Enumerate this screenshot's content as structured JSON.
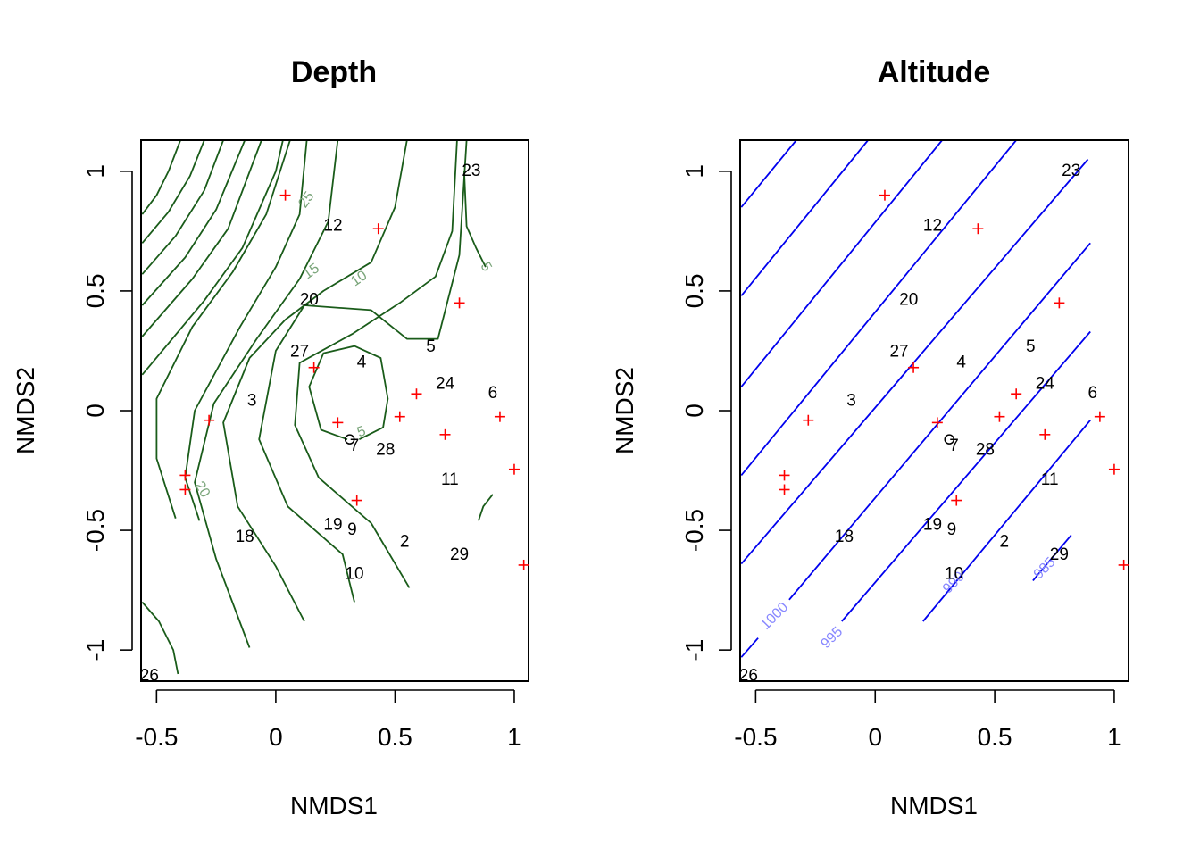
{
  "chart_data": [
    {
      "type": "scatter",
      "title": "Depth",
      "xlabel": "NMDS1",
      "ylabel": "NMDS2",
      "xlim": [
        -0.565,
        1.06
      ],
      "ylim": [
        -1.13,
        1.13
      ],
      "xticks": [
        -0.5,
        0.0,
        0.5,
        1.0
      ],
      "yticks": [
        -1.0,
        -0.5,
        0.0,
        0.5,
        1.0
      ],
      "contour_color": "#1a5c1a",
      "contour_label_color": "#7aa57a",
      "contour_labels": [
        {
          "text": "25",
          "x": 0.13,
          "y": 0.88,
          "angle": -55
        },
        {
          "text": "15",
          "x": 0.15,
          "y": 0.58,
          "angle": -35
        },
        {
          "text": "10",
          "x": 0.35,
          "y": 0.55,
          "angle": -35
        },
        {
          "text": "5",
          "x": 0.88,
          "y": 0.6,
          "angle": 60
        },
        {
          "text": "5",
          "x": 0.36,
          "y": -0.09,
          "angle": -20
        },
        {
          "text": "20",
          "x": -0.31,
          "y": -0.33,
          "angle": 60
        }
      ],
      "contours": [
        [
          [
            -0.56,
            0.82
          ],
          [
            -0.5,
            0.9
          ],
          [
            -0.45,
            1.0
          ],
          [
            -0.4,
            1.13
          ]
        ],
        [
          [
            -0.56,
            0.7
          ],
          [
            -0.45,
            0.83
          ],
          [
            -0.36,
            0.98
          ],
          [
            -0.3,
            1.13
          ]
        ],
        [
          [
            -0.56,
            0.57
          ],
          [
            -0.42,
            0.73
          ],
          [
            -0.3,
            0.92
          ],
          [
            -0.22,
            1.13
          ]
        ],
        [
          [
            -0.56,
            0.44
          ],
          [
            -0.38,
            0.64
          ],
          [
            -0.25,
            0.84
          ],
          [
            -0.13,
            1.13
          ]
        ],
        [
          [
            -0.56,
            0.31
          ],
          [
            -0.35,
            0.55
          ],
          [
            -0.2,
            0.76
          ],
          [
            -0.06,
            1.13
          ]
        ],
        [
          [
            -0.56,
            0.15
          ],
          [
            -0.3,
            0.46
          ],
          [
            -0.14,
            0.68
          ],
          [
            0.0,
            1.0
          ],
          [
            0.03,
            1.13
          ]
        ],
        [
          [
            -0.42,
            -0.45
          ],
          [
            -0.5,
            -0.2
          ],
          [
            -0.5,
            0.05
          ],
          [
            -0.35,
            0.35
          ],
          [
            -0.18,
            0.58
          ],
          [
            -0.04,
            0.82
          ],
          [
            0.06,
            1.13
          ]
        ],
        [
          [
            -0.32,
            -0.46
          ],
          [
            -0.38,
            -0.28
          ],
          [
            -0.34,
            0.0
          ],
          [
            -0.15,
            0.35
          ],
          [
            0.0,
            0.6
          ],
          [
            0.1,
            0.82
          ],
          [
            0.13,
            1.13
          ]
        ],
        [
          [
            -0.11,
            -0.99
          ],
          [
            -0.25,
            -0.62
          ],
          [
            -0.34,
            -0.3
          ],
          [
            -0.26,
            0.03
          ],
          [
            -0.08,
            0.3
          ],
          [
            0.1,
            0.55
          ],
          [
            0.22,
            0.79
          ],
          [
            0.26,
            1.13
          ]
        ],
        [
          [
            0.12,
            -0.88
          ],
          [
            0.0,
            -0.65
          ],
          [
            -0.16,
            -0.4
          ],
          [
            -0.22,
            -0.05
          ],
          [
            -0.11,
            0.22
          ],
          [
            0.04,
            0.38
          ],
          [
            0.2,
            0.5
          ],
          [
            0.4,
            0.62
          ],
          [
            0.5,
            0.85
          ],
          [
            0.55,
            1.13
          ]
        ],
        [
          [
            0.33,
            -0.8
          ],
          [
            0.28,
            -0.6
          ],
          [
            0.05,
            -0.4
          ],
          [
            -0.07,
            -0.12
          ],
          [
            0.0,
            0.25
          ],
          [
            0.12,
            0.44
          ],
          [
            0.4,
            0.42
          ],
          [
            0.55,
            0.3
          ],
          [
            0.68,
            0.3
          ],
          [
            0.77,
            0.65
          ],
          [
            0.8,
            1.13
          ]
        ],
        [
          [
            0.56,
            -0.74
          ],
          [
            0.4,
            -0.47
          ],
          [
            0.18,
            -0.28
          ],
          [
            0.08,
            -0.06
          ],
          [
            0.1,
            0.2
          ],
          [
            0.32,
            0.32
          ],
          [
            0.52,
            0.45
          ],
          [
            0.67,
            0.56
          ],
          [
            0.74,
            0.75
          ],
          [
            0.76,
            1.13
          ]
        ],
        [
          [
            0.3,
            -0.12
          ],
          [
            0.19,
            -0.08
          ],
          [
            0.14,
            0.1
          ],
          [
            0.2,
            0.24
          ],
          [
            0.33,
            0.27
          ],
          [
            0.44,
            0.22
          ],
          [
            0.47,
            0.05
          ],
          [
            0.45,
            -0.07
          ],
          [
            0.35,
            -0.12
          ]
        ],
        [
          [
            0.79,
            1.0
          ],
          [
            0.8,
            0.77
          ],
          [
            0.84,
            0.68
          ],
          [
            0.88,
            0.6
          ]
        ],
        [
          [
            0.85,
            -0.46
          ],
          [
            0.87,
            -0.4
          ],
          [
            0.91,
            -0.35
          ]
        ],
        [
          [
            -0.56,
            -0.8
          ],
          [
            -0.49,
            -0.88
          ],
          [
            -0.43,
            -1.0
          ],
          [
            -0.41,
            -1.1
          ]
        ]
      ],
      "species": [
        [
          0.04,
          0.9
        ],
        [
          0.43,
          0.76
        ],
        [
          0.77,
          0.45
        ],
        [
          0.16,
          0.18
        ],
        [
          0.59,
          0.07
        ],
        [
          -0.28,
          -0.04
        ],
        [
          0.26,
          -0.05
        ],
        [
          0.52,
          -0.025
        ],
        [
          0.94,
          -0.025
        ],
        [
          0.71,
          -0.1
        ],
        [
          1.0,
          -0.245
        ],
        [
          -0.38,
          -0.27
        ],
        [
          -0.38,
          -0.33
        ],
        [
          0.34,
          -0.375
        ],
        [
          1.04,
          -0.645
        ]
      ],
      "sites": [
        {
          "label": "23",
          "x": 0.82,
          "y": 1.0
        },
        {
          "label": "12",
          "x": 0.24,
          "y": 0.77
        },
        {
          "label": "20",
          "x": 0.14,
          "y": 0.46
        },
        {
          "label": "5",
          "x": 0.65,
          "y": 0.265
        },
        {
          "label": "27",
          "x": 0.1,
          "y": 0.245
        },
        {
          "label": "4",
          "x": 0.36,
          "y": 0.2
        },
        {
          "label": "24",
          "x": 0.71,
          "y": 0.11
        },
        {
          "label": "6",
          "x": 0.91,
          "y": 0.07
        },
        {
          "label": "3",
          "x": -0.1,
          "y": 0.04
        },
        {
          "label": "7",
          "x": 0.33,
          "y": -0.15
        },
        {
          "label": "28",
          "x": 0.46,
          "y": -0.165
        },
        {
          "label": "11",
          "x": 0.73,
          "y": -0.29
        },
        {
          "label": "19",
          "x": 0.24,
          "y": -0.48
        },
        {
          "label": "9",
          "x": 0.32,
          "y": -0.5
        },
        {
          "label": "18",
          "x": -0.13,
          "y": -0.53
        },
        {
          "label": "2",
          "x": 0.54,
          "y": -0.55
        },
        {
          "label": "29",
          "x": 0.77,
          "y": -0.605
        },
        {
          "label": "10",
          "x": 0.33,
          "y": -0.685
        },
        {
          "label": "26",
          "x": -0.53,
          "y": -1.11
        }
      ],
      "circle_marker": {
        "x": 0.31,
        "y": -0.12
      }
    },
    {
      "type": "scatter",
      "title": "Altitude",
      "xlabel": "NMDS1",
      "ylabel": "NMDS2",
      "xlim": [
        -0.565,
        1.06
      ],
      "ylim": [
        -1.13,
        1.13
      ],
      "xticks": [
        -0.5,
        0.0,
        0.5,
        1.0
      ],
      "yticks": [
        -1.0,
        -0.5,
        0.0,
        0.5,
        1.0
      ],
      "contour_color": "#0000ee",
      "contour_label_color": "#8888ff",
      "contour_labels": [
        {
          "text": "1000",
          "x": -0.42,
          "y": -0.86,
          "angle": -45
        },
        {
          "text": "995",
          "x": -0.18,
          "y": -0.95,
          "angle": -45
        },
        {
          "text": "990",
          "x": 0.33,
          "y": -0.72,
          "angle": -45
        },
        {
          "text": "985",
          "x": 0.71,
          "y": -0.66,
          "angle": -45
        }
      ],
      "contours": [
        [
          [
            -0.56,
            0.85
          ],
          [
            -0.33,
            1.13
          ]
        ],
        [
          [
            -0.56,
            0.48
          ],
          [
            -0.03,
            1.13
          ]
        ],
        [
          [
            -0.56,
            0.1
          ],
          [
            0.28,
            1.13
          ]
        ],
        [
          [
            -0.56,
            -0.27
          ],
          [
            0.59,
            1.13
          ]
        ],
        [
          [
            -0.56,
            -0.64
          ],
          [
            0.89,
            1.05
          ]
        ],
        [
          [
            -0.56,
            -1.03
          ],
          [
            -0.49,
            -0.95
          ]
        ],
        [
          [
            -0.36,
            -0.79
          ],
          [
            0.9,
            0.7
          ]
        ],
        [
          [
            -0.14,
            -0.88
          ],
          [
            0.9,
            0.33
          ]
        ],
        [
          [
            0.2,
            -0.88
          ],
          [
            0.9,
            -0.04
          ]
        ],
        [
          [
            0.66,
            -0.71
          ],
          [
            0.82,
            -0.52
          ]
        ]
      ],
      "species": [
        [
          0.04,
          0.9
        ],
        [
          0.43,
          0.76
        ],
        [
          0.77,
          0.45
        ],
        [
          0.16,
          0.18
        ],
        [
          0.59,
          0.07
        ],
        [
          -0.28,
          -0.04
        ],
        [
          0.26,
          -0.05
        ],
        [
          0.52,
          -0.025
        ],
        [
          0.94,
          -0.025
        ],
        [
          0.71,
          -0.1
        ],
        [
          1.0,
          -0.245
        ],
        [
          -0.38,
          -0.27
        ],
        [
          -0.38,
          -0.33
        ],
        [
          0.34,
          -0.375
        ],
        [
          1.04,
          -0.645
        ]
      ],
      "sites": [
        {
          "label": "23",
          "x": 0.82,
          "y": 1.0
        },
        {
          "label": "12",
          "x": 0.24,
          "y": 0.77
        },
        {
          "label": "20",
          "x": 0.14,
          "y": 0.46
        },
        {
          "label": "5",
          "x": 0.65,
          "y": 0.265
        },
        {
          "label": "27",
          "x": 0.1,
          "y": 0.245
        },
        {
          "label": "4",
          "x": 0.36,
          "y": 0.2
        },
        {
          "label": "24",
          "x": 0.71,
          "y": 0.11
        },
        {
          "label": "6",
          "x": 0.91,
          "y": 0.07
        },
        {
          "label": "3",
          "x": -0.1,
          "y": 0.04
        },
        {
          "label": "7",
          "x": 0.33,
          "y": -0.15
        },
        {
          "label": "28",
          "x": 0.46,
          "y": -0.165
        },
        {
          "label": "11",
          "x": 0.73,
          "y": -0.29
        },
        {
          "label": "19",
          "x": 0.24,
          "y": -0.48
        },
        {
          "label": "9",
          "x": 0.32,
          "y": -0.5
        },
        {
          "label": "18",
          "x": -0.13,
          "y": -0.53
        },
        {
          "label": "2",
          "x": 0.54,
          "y": -0.55
        },
        {
          "label": "29",
          "x": 0.77,
          "y": -0.605
        },
        {
          "label": "10",
          "x": 0.33,
          "y": -0.685
        },
        {
          "label": "26",
          "x": -0.53,
          "y": -1.11
        }
      ],
      "circle_marker": {
        "x": 0.31,
        "y": -0.12
      }
    }
  ]
}
